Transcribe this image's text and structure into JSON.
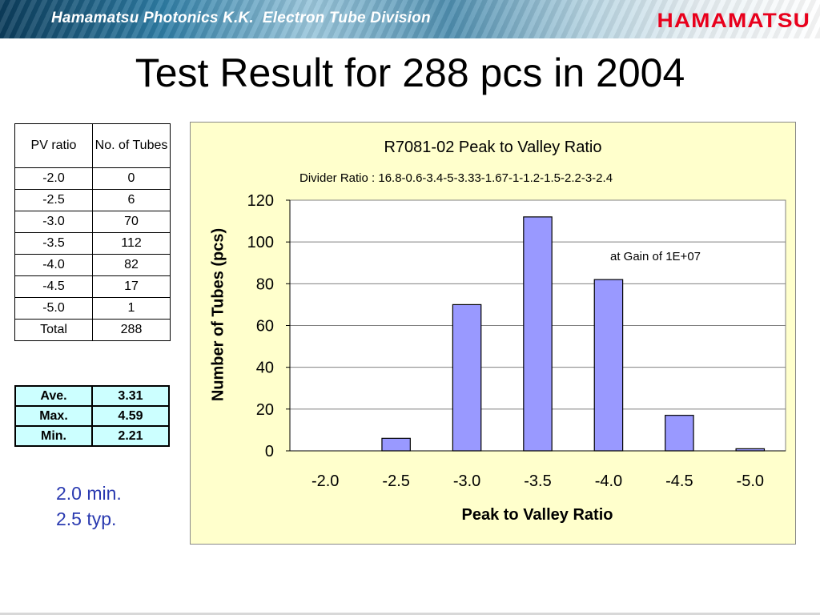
{
  "header": {
    "division_title": "Hamamatsu Photonics K.K.  Electron Tube Division",
    "logo_text": "HAMAMATSU"
  },
  "page_title": "Test Result for 288 pcs in 2004",
  "pv_table": {
    "headers": [
      "PV ratio",
      "No. of Tubes"
    ],
    "rows": [
      [
        "-2.0",
        "0"
      ],
      [
        "-2.5",
        "6"
      ],
      [
        "-3.0",
        "70"
      ],
      [
        "-3.5",
        "112"
      ],
      [
        "-4.0",
        "82"
      ],
      [
        "-4.5",
        "17"
      ],
      [
        "-5.0",
        "1"
      ],
      [
        "Total",
        "288"
      ]
    ]
  },
  "stats_table": {
    "rows": [
      [
        "Ave.",
        "3.31"
      ],
      [
        "Max.",
        "4.59"
      ],
      [
        "Min.",
        "2.21"
      ]
    ]
  },
  "spec": {
    "line1": "2.0 min.",
    "line2": "2.5 typ."
  },
  "colors": {
    "bar_fill": "#9999ff",
    "chart_background": "#ffffcc",
    "spec_text": "#2a3ab0",
    "logo": "#e8001c",
    "stats_background": "#ccffff"
  },
  "chart_data": {
    "type": "bar",
    "title": "R7081-02 Peak to Valley Ratio",
    "subtitle": "Divider Ratio : 16.8-0.6-3.4-5-3.33-1.67-1-1.2-1.5-2.2-3-2.4",
    "xlabel": "Peak to Valley Ratio",
    "ylabel": "Number of Tubes (pcs)",
    "annotation": "at Gain of 1E+07",
    "categories": [
      "-2.0",
      "-2.5",
      "-3.0",
      "-3.5",
      "-4.0",
      "-4.5",
      "-5.0"
    ],
    "values": [
      0,
      6,
      70,
      112,
      82,
      17,
      1
    ],
    "ylim": [
      0,
      120
    ],
    "yticks": [
      "0",
      "20",
      "40",
      "60",
      "80",
      "100",
      "120"
    ],
    "grid": true,
    "legend": "none"
  }
}
